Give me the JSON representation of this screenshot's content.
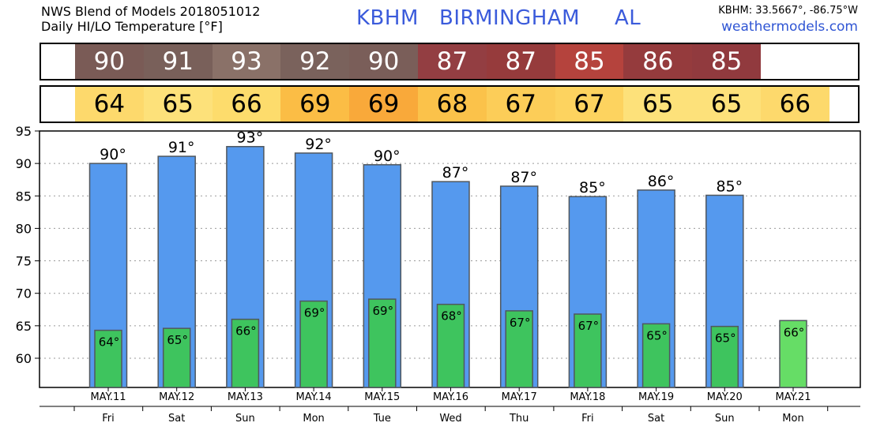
{
  "header": {
    "title_line1": "NWS Blend of Models 2018051012",
    "title_line2": "Daily HI/LO Temperature [°F]",
    "station_id": "KBHM",
    "station_name": "BIRMINGHAM",
    "state": "AL",
    "coords": "KBHM: 33.5667°, -86.75°W",
    "website": "weathermodels.com"
  },
  "strips": {
    "hi_values": [
      "90",
      "91",
      "93",
      "92",
      "90",
      "87",
      "87",
      "85",
      "86",
      "85"
    ],
    "hi_colors": [
      "#7a5b56",
      "#79605a",
      "#8a7168",
      "#7a625c",
      "#7a5e59",
      "#933e42",
      "#963b3c",
      "#b5433d",
      "#953b3d",
      "#913a3e"
    ],
    "lo_values": [
      "64",
      "65",
      "66",
      "69",
      "69",
      "68",
      "67",
      "67",
      "65",
      "65",
      "66"
    ],
    "lo_colors": [
      "#fdd96c",
      "#fde17a",
      "#fddc6c",
      "#fbbd45",
      "#f9a93a",
      "#fbc24a",
      "#fccd58",
      "#fdd35f",
      "#fde17a",
      "#fde17a",
      "#fdd96c"
    ]
  },
  "chart_data": {
    "type": "bar",
    "categories": [
      "MAY.11",
      "MAY.12",
      "MAY.13",
      "MAY.14",
      "MAY.15",
      "MAY.16",
      "MAY.17",
      "MAY.18",
      "MAY.19",
      "MAY.20",
      "MAY.21"
    ],
    "days": [
      "Fri",
      "Sat",
      "Sun",
      "Mon",
      "Tue",
      "Wed",
      "Thu",
      "Fri",
      "Sat",
      "Sun",
      "Mon"
    ],
    "series": [
      {
        "values": [
          90,
          91.1,
          92.6,
          91.6,
          89.8,
          87.2,
          86.5,
          84.9,
          85.9,
          85.1,
          null
        ],
        "labels": [
          "90°",
          "91°",
          "93°",
          "92°",
          "90°",
          "87°",
          "87°",
          "85°",
          "86°",
          "85°",
          ""
        ],
        "color": "#5599ee"
      },
      {
        "values": [
          64.3,
          64.6,
          66.0,
          68.8,
          69.1,
          68.3,
          67.3,
          66.8,
          65.3,
          64.9,
          65.8
        ],
        "labels": [
          "64°",
          "65°",
          "66°",
          "69°",
          "69°",
          "68°",
          "67°",
          "67°",
          "65°",
          "65°",
          "66°"
        ],
        "color": "#3ec45e",
        "last_color": "#66dd66"
      }
    ],
    "yticks": [
      60,
      65,
      70,
      75,
      80,
      85,
      90,
      95
    ],
    "ylim": [
      55.5,
      95
    ],
    "grid": true
  }
}
